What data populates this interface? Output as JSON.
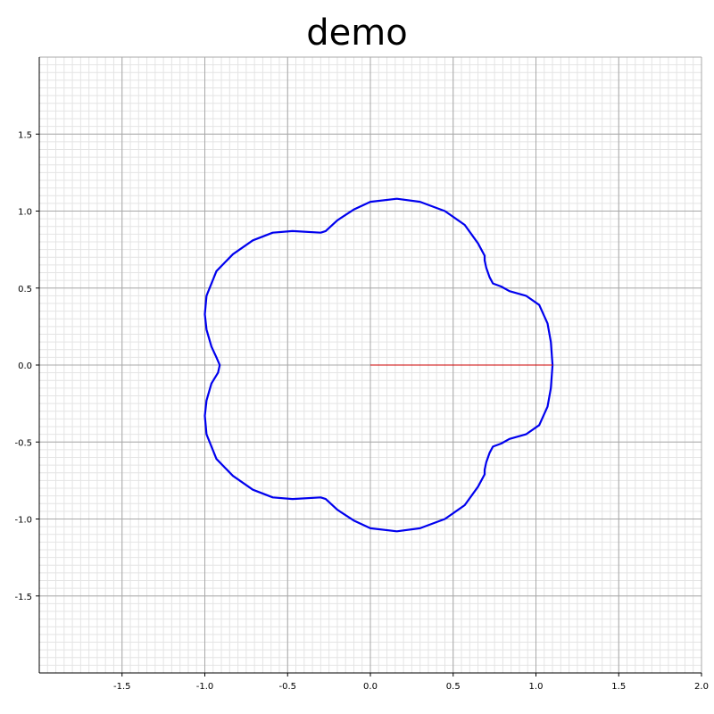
{
  "chart_data": {
    "type": "line",
    "title": "demo",
    "xlabel": "",
    "ylabel": "",
    "xlim": [
      -2.0,
      2.0
    ],
    "ylim": [
      -2.0,
      2.0
    ],
    "grid": true,
    "grid_minor": true,
    "x_ticks": [
      "-1.5",
      "-1.0",
      "-0.5",
      "0.0",
      "0.5",
      "1.0",
      "1.5",
      "2.0"
    ],
    "y_ticks": [
      "1.5",
      "1.0",
      "0.5",
      "0.0",
      "-0.5",
      "-1.0",
      "-1.5"
    ],
    "series": [
      {
        "color": "#0000ee",
        "x": [
          1.1,
          1.09,
          1.07,
          1.02,
          0.94,
          0.84,
          0.79,
          0.74,
          0.72,
          0.7,
          0.69,
          0.69,
          0.65,
          0.57,
          0.45,
          0.3,
          0.16,
          0.0,
          -0.1,
          -0.2,
          -0.27,
          -0.3,
          -0.47,
          -0.59,
          -0.71,
          -0.83,
          -0.93,
          -0.99,
          -1.0,
          -0.99,
          -0.96,
          -0.93,
          -0.91,
          -0.92,
          -0.96,
          -0.99,
          -1.0,
          -0.99,
          -0.93,
          -0.83,
          -0.71,
          -0.59,
          -0.47,
          -0.3,
          -0.27,
          -0.2,
          -0.1,
          0.0,
          0.16,
          0.3,
          0.45,
          0.57,
          0.65,
          0.69,
          0.69,
          0.7,
          0.72,
          0.74,
          0.79,
          0.84,
          0.94,
          1.02,
          1.07,
          1.09,
          1.1
        ],
        "y": [
          0.0,
          0.15,
          0.27,
          0.39,
          0.45,
          0.48,
          0.51,
          0.53,
          0.57,
          0.63,
          0.68,
          0.71,
          0.79,
          0.91,
          1.0,
          1.06,
          1.08,
          1.06,
          1.01,
          0.94,
          0.87,
          0.86,
          0.87,
          0.86,
          0.81,
          0.72,
          0.61,
          0.45,
          0.33,
          0.23,
          0.12,
          0.05,
          0.0,
          -0.05,
          -0.12,
          -0.23,
          -0.33,
          -0.45,
          -0.61,
          -0.72,
          -0.81,
          -0.86,
          -0.87,
          -0.86,
          -0.87,
          -0.94,
          -1.01,
          -1.06,
          -1.08,
          -1.06,
          -1.0,
          -0.91,
          -0.79,
          -0.71,
          -0.68,
          -0.63,
          -0.57,
          -0.53,
          -0.51,
          -0.48,
          -0.45,
          -0.39,
          -0.27,
          -0.15,
          0.0
        ]
      },
      {
        "color": "#cc0000",
        "x": [
          0.0,
          1.1
        ],
        "y": [
          0.0,
          0.0
        ]
      }
    ]
  }
}
